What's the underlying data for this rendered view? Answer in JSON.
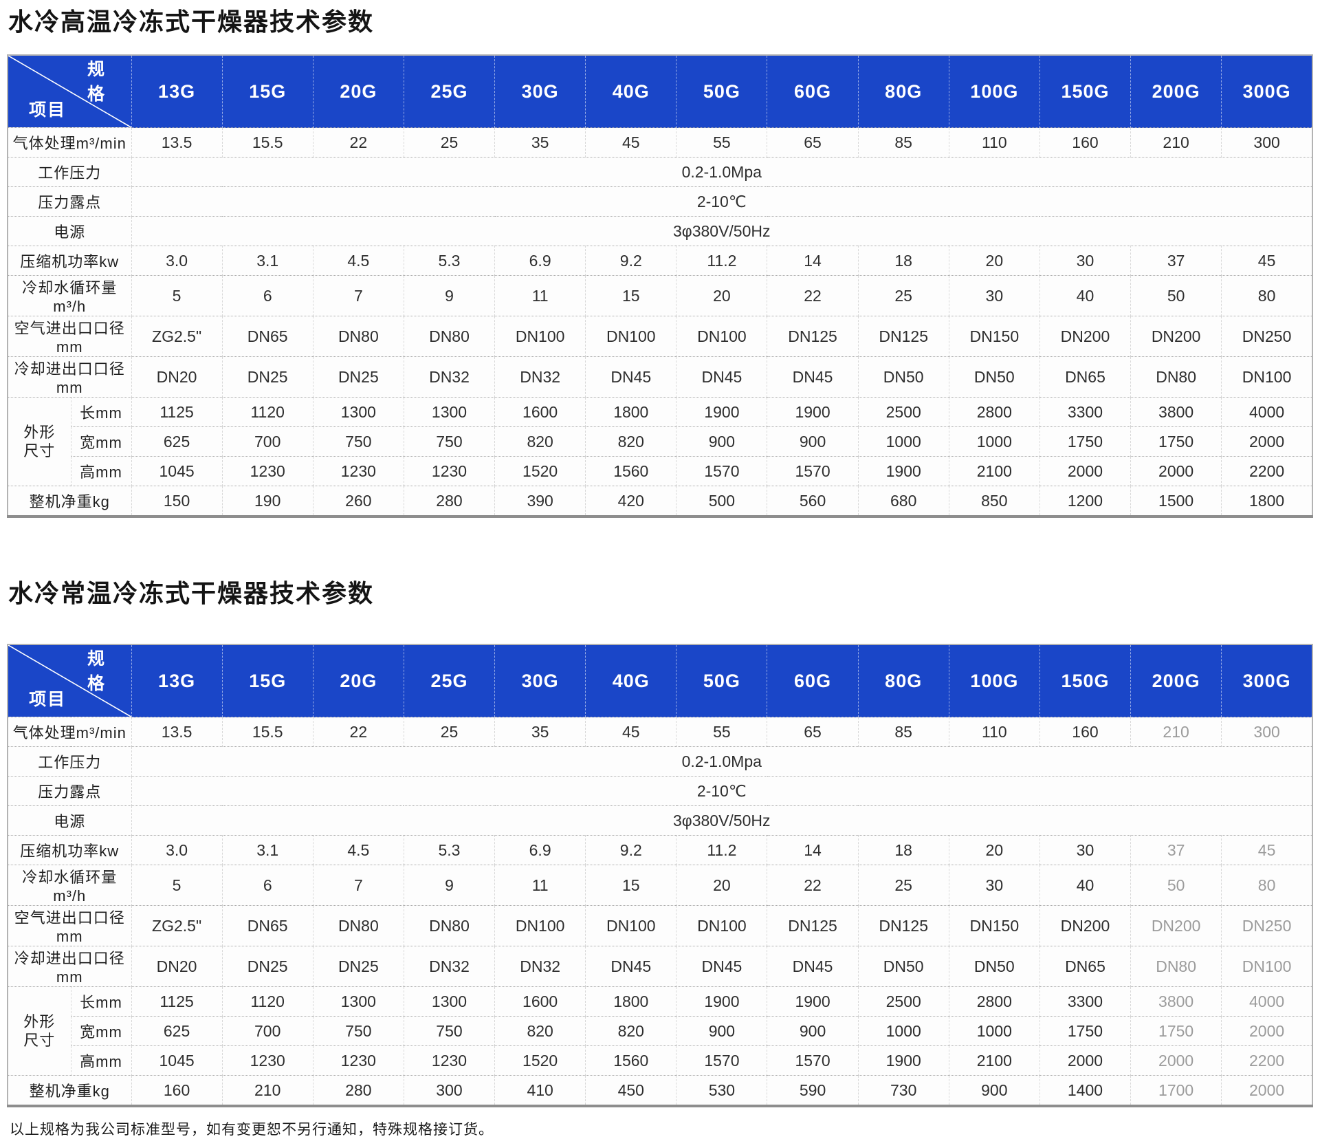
{
  "colors": {
    "header_blue": "#1a46c8",
    "header_text": "#ffffff",
    "body_text": "#2e2e2e"
  },
  "corner": {
    "top_right": "规格",
    "bottom_left": "项目"
  },
  "columns": [
    "13G",
    "15G",
    "20G",
    "25G",
    "30G",
    "40G",
    "50G",
    "60G",
    "80G",
    "100G",
    "150G",
    "200G",
    "300G"
  ],
  "footer_note": "以上规格为我公司标准型号，如有变更恕不另行通知，特殊规格接订货。",
  "tables": [
    {
      "id": 1,
      "title": "水冷高温冷冻式干燥器技术参数",
      "rows": [
        {
          "type": "values",
          "label": "气体处理m³/min",
          "values": [
            "13.5",
            "15.5",
            "22",
            "25",
            "35",
            "45",
            "55",
            "65",
            "85",
            "110",
            "160",
            "210",
            "300"
          ]
        },
        {
          "type": "merged",
          "label": "工作压力",
          "value": "0.2-1.0Mpa"
        },
        {
          "type": "merged",
          "label": "压力露点",
          "value": "2-10℃"
        },
        {
          "type": "merged",
          "label": "电源",
          "value": "3φ380V/50Hz"
        },
        {
          "type": "values",
          "label": "压缩机功率kw",
          "values": [
            "3.0",
            "3.1",
            "4.5",
            "5.3",
            "6.9",
            "9.2",
            "11.2",
            "14",
            "18",
            "20",
            "30",
            "37",
            "45"
          ]
        },
        {
          "type": "values",
          "label": "冷却水循环量m³/h",
          "values": [
            "5",
            "6",
            "7",
            "9",
            "11",
            "15",
            "20",
            "22",
            "25",
            "30",
            "40",
            "50",
            "80"
          ]
        },
        {
          "type": "values",
          "label": "空气进出口口径mm",
          "values": [
            "ZG2.5\"",
            "DN65",
            "DN80",
            "DN80",
            "DN100",
            "DN100",
            "DN100",
            "DN125",
            "DN125",
            "DN150",
            "DN200",
            "DN200",
            "DN250"
          ]
        },
        {
          "type": "values",
          "label": "冷却进出口口径mm",
          "values": [
            "DN20",
            "DN25",
            "DN25",
            "DN32",
            "DN32",
            "DN45",
            "DN45",
            "DN45",
            "DN50",
            "DN50",
            "DN65",
            "DN80",
            "DN100"
          ]
        },
        {
          "type": "dims",
          "group_label": "外形尺寸",
          "sub_rows": [
            {
              "label": "长mm",
              "values": [
                "1125",
                "1120",
                "1300",
                "1300",
                "1600",
                "1800",
                "1900",
                "1900",
                "2500",
                "2800",
                "3300",
                "3800",
                "4000"
              ]
            },
            {
              "label": "宽mm",
              "values": [
                "625",
                "700",
                "750",
                "750",
                "820",
                "820",
                "900",
                "900",
                "1000",
                "1000",
                "1750",
                "1750",
                "2000"
              ]
            },
            {
              "label": "高mm",
              "values": [
                "1045",
                "1230",
                "1230",
                "1230",
                "1520",
                "1560",
                "1570",
                "1570",
                "1900",
                "2100",
                "2000",
                "2000",
                "2200"
              ]
            }
          ]
        },
        {
          "type": "values",
          "label": "整机净重kg",
          "values": [
            "150",
            "190",
            "260",
            "280",
            "390",
            "420",
            "500",
            "560",
            "680",
            "850",
            "1200",
            "1500",
            "1800"
          ]
        }
      ]
    },
    {
      "id": 2,
      "title": "水冷常温冷冻式干燥器技术参数",
      "rows": [
        {
          "type": "values",
          "label": "气体处理m³/min",
          "values": [
            "13.5",
            "15.5",
            "22",
            "25",
            "35",
            "45",
            "55",
            "65",
            "85",
            "110",
            "160",
            "210",
            "300"
          ]
        },
        {
          "type": "merged",
          "label": "工作压力",
          "value": "0.2-1.0Mpa"
        },
        {
          "type": "merged",
          "label": "压力露点",
          "value": "2-10℃"
        },
        {
          "type": "merged",
          "label": "电源",
          "value": "3φ380V/50Hz"
        },
        {
          "type": "values",
          "label": "压缩机功率kw",
          "values": [
            "3.0",
            "3.1",
            "4.5",
            "5.3",
            "6.9",
            "9.2",
            "11.2",
            "14",
            "18",
            "20",
            "30",
            "37",
            "45"
          ]
        },
        {
          "type": "values",
          "label": "冷却水循环量m³/h",
          "values": [
            "5",
            "6",
            "7",
            "9",
            "11",
            "15",
            "20",
            "22",
            "25",
            "30",
            "40",
            "50",
            "80"
          ]
        },
        {
          "type": "values",
          "label": "空气进出口口径mm",
          "values": [
            "ZG2.5\"",
            "DN65",
            "DN80",
            "DN80",
            "DN100",
            "DN100",
            "DN100",
            "DN125",
            "DN125",
            "DN150",
            "DN200",
            "DN200",
            "DN250"
          ]
        },
        {
          "type": "values",
          "label": "冷却进出口口径mm",
          "values": [
            "DN20",
            "DN25",
            "DN25",
            "DN32",
            "DN32",
            "DN45",
            "DN45",
            "DN45",
            "DN50",
            "DN50",
            "DN65",
            "DN80",
            "DN100"
          ]
        },
        {
          "type": "dims",
          "group_label": "外形尺寸",
          "sub_rows": [
            {
              "label": "长mm",
              "values": [
                "1125",
                "1120",
                "1300",
                "1300",
                "1600",
                "1800",
                "1900",
                "1900",
                "2500",
                "2800",
                "3300",
                "3800",
                "4000"
              ]
            },
            {
              "label": "宽mm",
              "values": [
                "625",
                "700",
                "750",
                "750",
                "820",
                "820",
                "900",
                "900",
                "1000",
                "1000",
                "1750",
                "1750",
                "2000"
              ]
            },
            {
              "label": "高mm",
              "values": [
                "1045",
                "1230",
                "1230",
                "1230",
                "1520",
                "1560",
                "1570",
                "1570",
                "1900",
                "2100",
                "2000",
                "2000",
                "2200"
              ]
            }
          ]
        },
        {
          "type": "values",
          "label": "整机净重kg",
          "values": [
            "160",
            "210",
            "280",
            "300",
            "410",
            "450",
            "530",
            "590",
            "730",
            "900",
            "1400",
            "1700",
            "2000"
          ]
        }
      ]
    }
  ]
}
